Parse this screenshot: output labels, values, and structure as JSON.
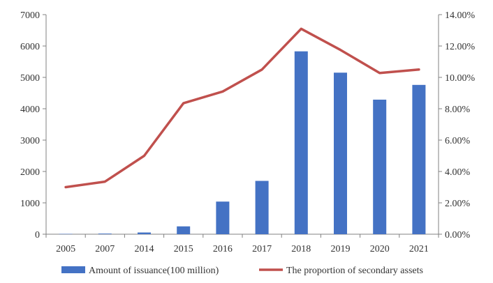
{
  "chart_data": {
    "type": "bar+line",
    "categories": [
      "2005",
      "2007",
      "2014",
      "2015",
      "2016",
      "2017",
      "2018",
      "2019",
      "2020",
      "2021"
    ],
    "series": [
      {
        "name": "Amount of issuance(100 million)",
        "type": "bar",
        "axis": "left",
        "color": "#4472C4",
        "values": [
          10,
          20,
          55,
          250,
          1040,
          1700,
          5830,
          5150,
          4290,
          4760
        ]
      },
      {
        "name": "The proportion of secondary assets",
        "type": "line",
        "axis": "right",
        "color": "#C0504D",
        "values": [
          0.03,
          0.0335,
          0.05,
          0.0835,
          0.091,
          0.105,
          0.131,
          0.1175,
          0.1028,
          0.105
        ]
      }
    ],
    "y_left": {
      "min": 0,
      "max": 7000,
      "ticks": [
        0,
        1000,
        2000,
        3000,
        4000,
        5000,
        6000,
        7000
      ]
    },
    "y_right": {
      "min": 0,
      "max": 0.14,
      "ticks": [
        "0.00%",
        "2.00%",
        "4.00%",
        "6.00%",
        "8.00%",
        "10.00%",
        "12.00%",
        "14.00%"
      ]
    },
    "grid": false,
    "legend_position": "bottom",
    "title": "",
    "xlabel": "",
    "ylabel": ""
  }
}
